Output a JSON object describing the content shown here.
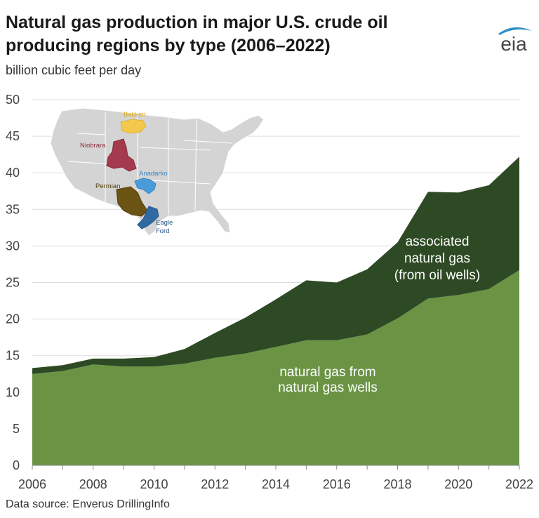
{
  "title": "Natural gas production in major U.S. crude oil producing regions by type (2006–2022)",
  "subtitle": "billion cubic feet per day",
  "source": "Data source: Enverus DrillingInfo",
  "logo_text": "eia",
  "colors": {
    "natural_gas_wells": "#6a9444",
    "associated_gas": "#2e4a24",
    "gridline": "#dddddd",
    "map_fill": "#d4d4d4",
    "bakken": "#f2c94c",
    "niobrara": "#a33a4d",
    "anadarko": "#4a9cd8",
    "permian": "#6b5314",
    "eagle_ford": "#2f6aa3"
  },
  "map": {
    "labels": {
      "bakken": "Bakken",
      "niobrara": "Niobrara",
      "anadarko": "Anadarko",
      "permian": "Permian",
      "eagle_ford_1": "Eagle",
      "eagle_ford_2": "Ford"
    }
  },
  "chart_data": {
    "type": "area",
    "stacked": true,
    "x": [
      2006,
      2007,
      2008,
      2009,
      2010,
      2011,
      2012,
      2013,
      2014,
      2015,
      2016,
      2017,
      2018,
      2019,
      2020,
      2021,
      2022
    ],
    "series": [
      {
        "name": "natural gas from natural gas wells",
        "label_lines": [
          "natural gas from",
          "natural gas wells"
        ],
        "values": [
          12.5,
          12.9,
          13.8,
          13.5,
          13.5,
          13.9,
          14.7,
          15.3,
          16.2,
          17.1,
          17.1,
          17.9,
          20.1,
          22.8,
          23.3,
          24.1,
          26.7
        ]
      },
      {
        "name": "associated natural gas (from oil wells)",
        "label_lines": [
          "associated",
          "natural gas",
          "(from oil wells)"
        ],
        "values": [
          0.8,
          0.8,
          0.8,
          1.1,
          1.3,
          2.0,
          3.4,
          4.9,
          6.5,
          8.2,
          7.9,
          8.9,
          10.4,
          14.6,
          14.0,
          14.2,
          15.5
        ]
      }
    ],
    "ylim": [
      0,
      50
    ],
    "yticks": [
      0,
      5,
      10,
      15,
      20,
      25,
      30,
      35,
      40,
      45,
      50
    ],
    "xticks": [
      2006,
      2008,
      2010,
      2012,
      2014,
      2016,
      2018,
      2020,
      2022
    ],
    "grid": true
  }
}
